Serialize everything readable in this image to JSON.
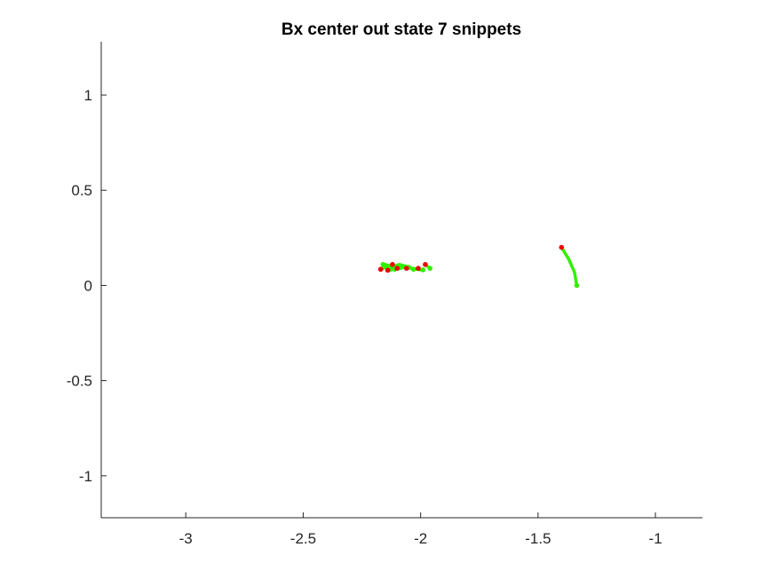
{
  "chart_data": {
    "type": "line",
    "title": "Bx  center out state 7 snippets",
    "xlabel": "",
    "ylabel": "",
    "xlim": [
      -3.36,
      -0.8
    ],
    "ylim": [
      -1.22,
      1.28
    ],
    "x_ticks": [
      -3,
      -2.5,
      -2,
      -1.5,
      -1
    ],
    "x_tick_labels": [
      "-3",
      "-2.5",
      "-2",
      "-1.5",
      "-1"
    ],
    "y_ticks": [
      -1,
      -0.5,
      0,
      0.5,
      1
    ],
    "y_tick_labels": [
      "-1",
      "-0.5",
      "0",
      "0.5",
      "1"
    ],
    "grid": false,
    "box": "left-bottom-axes-only",
    "colors": {
      "trajectory": "#33ee00",
      "end_marker": "#33ee00",
      "start_marker": "#ee0000",
      "axis": "#262626"
    },
    "series": [
      {
        "x": [
          -2.17,
          -2.15,
          -2.13,
          -2.11
        ],
        "y": [
          0.085,
          0.095,
          0.09,
          0.08
        ]
      },
      {
        "x": [
          -2.15,
          -2.12,
          -2.09,
          -2.06,
          -2.03
        ],
        "y": [
          0.11,
          0.1,
          0.11,
          0.1,
          0.085
        ]
      },
      {
        "x": [
          -2.13,
          -2.1,
          -2.07,
          -2.04,
          -2.01
        ],
        "y": [
          0.08,
          0.09,
          0.1,
          0.09,
          0.085
        ]
      },
      {
        "x": [
          -2.1,
          -2.07,
          -2.04,
          -2.0
        ],
        "y": [
          0.085,
          0.095,
          0.09,
          0.082
        ]
      },
      {
        "x": [
          -1.98,
          -1.96
        ],
        "y": [
          0.108,
          0.092
        ]
      },
      {
        "x": [
          -1.4,
          -1.37,
          -1.345,
          -1.335
        ],
        "y": [
          0.2,
          0.14,
          0.07,
          0.0
        ]
      }
    ],
    "start_points": {
      "x": [
        -2.17,
        -2.14,
        -2.12,
        -2.1,
        -2.06,
        -2.01,
        -1.98,
        -1.4
      ],
      "y": [
        0.085,
        0.08,
        0.11,
        0.09,
        0.09,
        0.09,
        0.11,
        0.2
      ]
    },
    "end_points": {
      "x": [
        -2.16,
        -2.13,
        -2.09,
        -2.05,
        -2.03,
        -1.99,
        -1.96,
        -1.335
      ],
      "y": [
        0.11,
        0.09,
        0.1,
        0.095,
        0.085,
        0.082,
        0.09,
        0.0
      ]
    }
  }
}
